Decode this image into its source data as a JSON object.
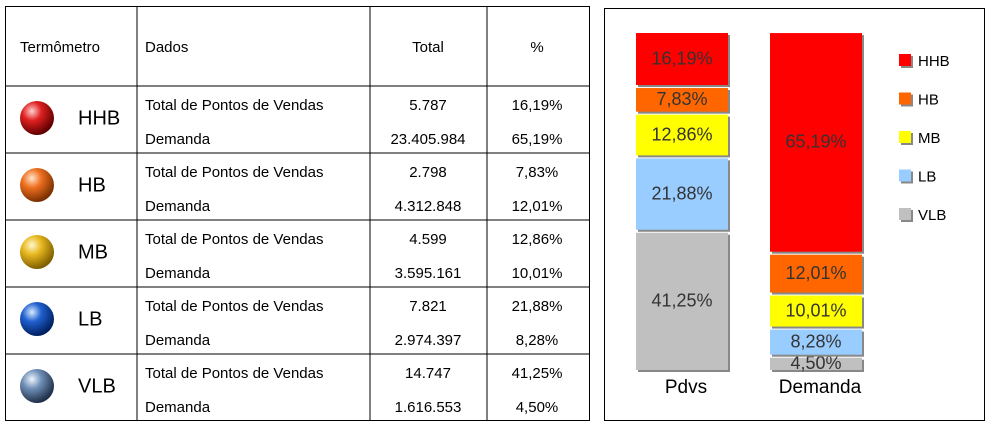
{
  "table": {
    "headers": [
      "Termômetro",
      "Dados",
      "Total",
      "%"
    ],
    "groups": [
      {
        "label": "HHB",
        "rows": [
          [
            "Total de Pontos de Vendas",
            "5.787",
            "16,19%"
          ],
          [
            "Demanda",
            "23.405.984",
            "65,19%"
          ]
        ]
      },
      {
        "label": "HB",
        "rows": [
          [
            "Total de Pontos de Vendas",
            "2.798",
            "7,83%"
          ],
          [
            "Demanda",
            "4.312.848",
            "12,01%"
          ]
        ]
      },
      {
        "label": "MB",
        "rows": [
          [
            "Total de Pontos de Vendas",
            "4.599",
            "12,86%"
          ],
          [
            "Demanda",
            "3.595.161",
            "10,01%"
          ]
        ]
      },
      {
        "label": "LB",
        "rows": [
          [
            "Total de Pontos de Vendas",
            "7.821",
            "21,88%"
          ],
          [
            "Demanda",
            "2.974.397",
            "8,28%"
          ]
        ]
      },
      {
        "label": "VLB",
        "rows": [
          [
            "Total de Pontos de Vendas",
            "14.747",
            "41,25%"
          ],
          [
            "Demanda",
            "1.616.553",
            "4,50%"
          ]
        ]
      }
    ]
  },
  "chart_data": {
    "type": "stacked_bar",
    "categories": [
      "Pdvs",
      "Demanda"
    ],
    "series": [
      {
        "name": "HHB",
        "color": "#ff0000",
        "values": [
          16.19,
          65.19
        ],
        "value_labels": [
          "16,19%",
          "65,19%"
        ]
      },
      {
        "name": "HB",
        "color": "#ff6600",
        "values": [
          7.83,
          12.01
        ],
        "value_labels": [
          "7,83%",
          "12,01%"
        ]
      },
      {
        "name": "MB",
        "color": "#ffff00",
        "values": [
          12.86,
          10.01
        ],
        "value_labels": [
          "12,86%",
          "10,01%"
        ]
      },
      {
        "name": "LB",
        "color": "#99ccff",
        "values": [
          21.88,
          8.28
        ],
        "value_labels": [
          "21,88%",
          "8,28%"
        ]
      },
      {
        "name": "VLB",
        "color": "#c0c0c0",
        "values": [
          41.25,
          4.5
        ],
        "value_labels": [
          "41,25%",
          "4,50%"
        ]
      }
    ],
    "legend": "right"
  }
}
